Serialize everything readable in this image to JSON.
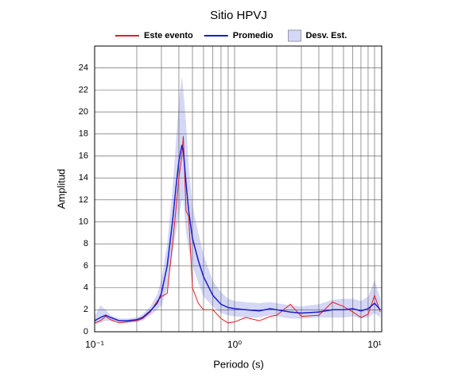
{
  "chart_data": {
    "type": "line",
    "title": "Sitio HPVJ",
    "x_label": "Periodo (s)",
    "y_label": "Amplitud",
    "x_scale": "log",
    "grid": true,
    "legend": "top",
    "xlim": [
      0.1,
      11.25
    ],
    "ylim": [
      0,
      26
    ],
    "xticks": [
      {
        "value": 0.1,
        "label": "10⁻¹"
      },
      {
        "value": 1,
        "label": "10⁰"
      },
      {
        "value": 10,
        "label": "10¹"
      }
    ],
    "xminorticks": [
      0.2,
      0.3,
      0.4,
      0.5,
      0.6,
      0.7,
      0.8,
      0.9,
      2,
      3,
      4,
      5,
      6,
      7,
      8,
      9
    ],
    "yticks": [
      0,
      2,
      4,
      6,
      8,
      10,
      12,
      14,
      16,
      18,
      20,
      22,
      24
    ],
    "x": [
      0.1,
      0.11,
      0.12,
      0.13,
      0.15,
      0.17,
      0.2,
      0.22,
      0.25,
      0.28,
      0.3,
      0.33,
      0.36,
      0.38,
      0.4,
      0.42,
      0.43,
      0.45,
      0.47,
      0.5,
      0.55,
      0.6,
      0.7,
      0.8,
      0.9,
      1.0,
      1.2,
      1.5,
      1.8,
      2.0,
      2.5,
      3,
      4,
      5,
      6,
      7,
      8,
      9,
      10,
      11
    ],
    "band": {
      "name": "Desv. Est.",
      "color": "#d4d7f5",
      "upper": [
        1.4,
        2.4,
        2.0,
        1.5,
        1.2,
        1.2,
        1.3,
        1.6,
        2.3,
        3.4,
        4.8,
        8,
        13,
        17,
        21,
        23.2,
        22,
        19,
        15,
        11.5,
        9,
        7,
        4.6,
        3.6,
        3.0,
        2.8,
        2.7,
        2.6,
        2.7,
        2.6,
        2.4,
        2.3,
        2.5,
        2.9,
        3.0,
        3.0,
        2.8,
        3.2,
        4.7,
        3.0
      ],
      "lower": [
        0.7,
        0.8,
        1.0,
        1.0,
        0.8,
        0.8,
        0.9,
        1.0,
        1.5,
        2.0,
        2.4,
        4,
        7,
        9,
        10.5,
        12,
        12,
        9,
        7.5,
        6,
        4.5,
        3.2,
        2.3,
        1.7,
        1.5,
        1.4,
        1.3,
        1.3,
        1.5,
        1.4,
        1.2,
        1.2,
        1.3,
        1.3,
        1.3,
        1.4,
        1.2,
        1.3,
        1.7,
        1.3
      ]
    },
    "series": [
      {
        "name": "Este evento",
        "color": "#e81b23",
        "values": [
          0.8,
          1.0,
          1.4,
          1.1,
          0.8,
          0.9,
          1.0,
          1.2,
          1.8,
          2.8,
          3.2,
          3.5,
          8,
          11,
          14,
          16,
          17.8,
          11,
          10.5,
          4,
          2.6,
          2.0,
          2.0,
          1.2,
          0.8,
          0.9,
          1.3,
          1.0,
          1.4,
          1.5,
          2.5,
          1.4,
          1.5,
          2.7,
          2.3,
          1.8,
          1.3,
          1.6,
          3.3,
          1.8
        ]
      },
      {
        "name": "Promedio",
        "color": "#1c1ccf",
        "values": [
          1.0,
          1.3,
          1.5,
          1.3,
          1.0,
          1.0,
          1.1,
          1.3,
          1.9,
          2.6,
          3.5,
          6,
          10,
          13,
          15.5,
          17,
          16.5,
          13.5,
          11,
          8.5,
          6.5,
          5,
          3.3,
          2.5,
          2.2,
          2.1,
          2.0,
          1.9,
          2.1,
          2.0,
          1.8,
          1.7,
          1.8,
          2.0,
          2.0,
          2.1,
          1.9,
          2.1,
          2.6,
          2.0
        ]
      }
    ]
  }
}
